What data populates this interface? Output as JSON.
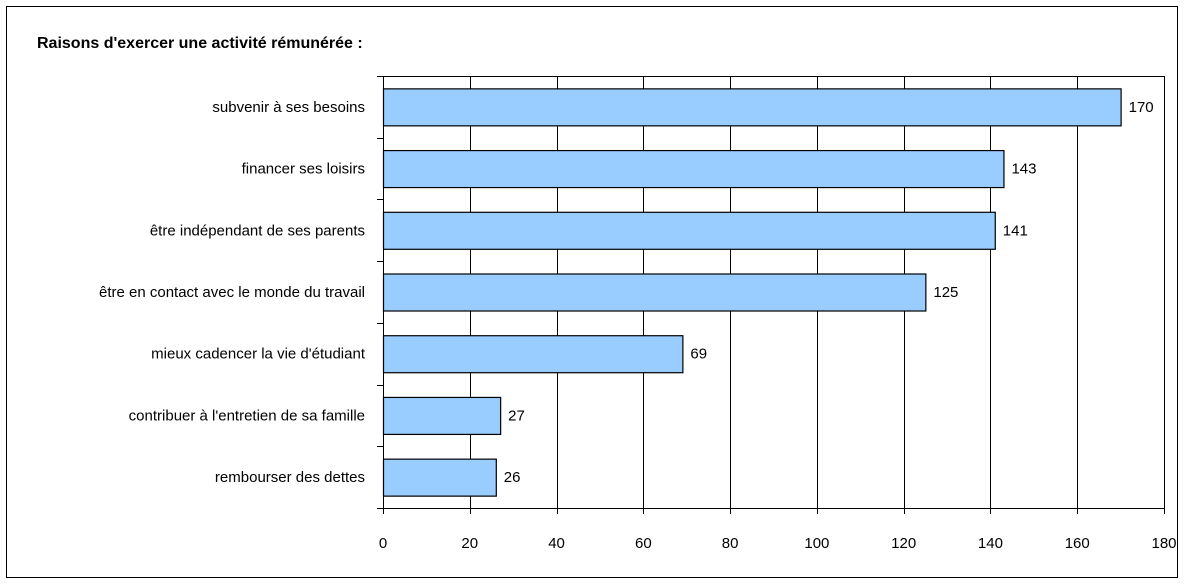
{
  "chart_data": {
    "type": "bar",
    "orientation": "horizontal",
    "title": "Raisons d'exercer une activité rémunérée :",
    "categories": [
      "subvenir à ses besoins",
      "financer ses loisirs",
      "être indépendant de ses parents",
      "être en contact avec le monde du travail",
      "mieux cadencer la vie d'étudiant",
      "contribuer à l'entretien de sa famille",
      "rembourser des dettes"
    ],
    "values": [
      170,
      143,
      141,
      125,
      69,
      27,
      26
    ],
    "xlim": [
      0,
      180
    ],
    "xticks": [
      0,
      20,
      40,
      60,
      80,
      100,
      120,
      140,
      160,
      180
    ],
    "xlabel": "",
    "ylabel": "",
    "grid": "vertical",
    "data_labels": true,
    "colors": {
      "bar_fill": "#99ccff",
      "bar_stroke": "#000000",
      "grid": "#000000",
      "frame": "#000000"
    }
  }
}
